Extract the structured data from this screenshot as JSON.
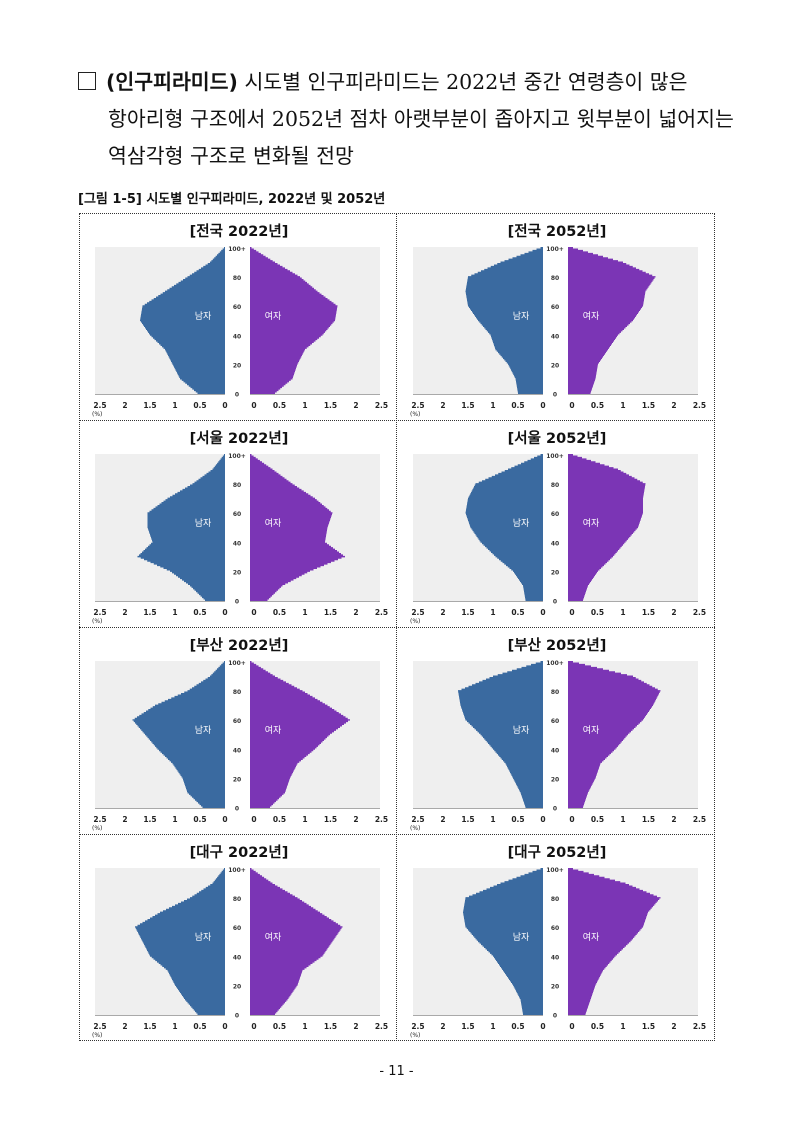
{
  "intro": {
    "bullet": "□",
    "keyword": "(인구피라미드)",
    "line1_rest": "시도별 인구피라미드는 2022년 중간 연령층이 많은",
    "line2": "항아리형 구조에서 2052년 점차 아랫부분이 좁아지고 윗부분이 넓어지는",
    "line3": "역삼각형 구조로 변화될 전망"
  },
  "figure_title": "[그림 1-5] 시도별 인구피라미드, 2022년 및 2052년",
  "page_number": "- 11 -",
  "colors": {
    "male": "#3a6aa0",
    "female": "#7b35b5",
    "plot_bg": "#efefef"
  },
  "chart_data": [
    {
      "type": "pyramid",
      "title": "[전국 2022년]",
      "series": [
        {
          "name": "남자"
        },
        {
          "name": "여자"
        }
      ],
      "y_ticks": [
        "0",
        "20",
        "40",
        "60",
        "80",
        "100+"
      ],
      "x_ticks_left": [
        "2.5",
        "2",
        "1.5",
        "1",
        "0.5",
        "0"
      ],
      "x_ticks_right": [
        "0",
        "0.5",
        "1",
        "1.5",
        "2",
        "2.5"
      ],
      "x_unit": "(%)",
      "ages": [
        0,
        10,
        20,
        30,
        40,
        50,
        60,
        70,
        80,
        90,
        100
      ],
      "male": [
        0.55,
        0.9,
        1.05,
        1.2,
        1.5,
        1.7,
        1.65,
        1.2,
        0.75,
        0.3,
        0.02
      ],
      "female": [
        0.5,
        0.85,
        0.95,
        1.1,
        1.45,
        1.7,
        1.75,
        1.35,
        1.0,
        0.5,
        0.03
      ]
    },
    {
      "type": "pyramid",
      "title": "[전국 2052년]",
      "series": [
        {
          "name": "남자"
        },
        {
          "name": "여자"
        }
      ],
      "y_ticks": [
        "0",
        "20",
        "40",
        "60",
        "80",
        "100+"
      ],
      "x_ticks_left": [
        "2.5",
        "2",
        "1.5",
        "1",
        "0.5",
        "0"
      ],
      "x_ticks_right": [
        "0",
        "0.5",
        "1",
        "1.5",
        "2",
        "2.5"
      ],
      "x_unit": "(%)",
      "ages": [
        0,
        10,
        20,
        30,
        40,
        50,
        60,
        70,
        80,
        90,
        100
      ],
      "male": [
        0.5,
        0.55,
        0.7,
        0.95,
        1.05,
        1.3,
        1.5,
        1.55,
        1.5,
        0.85,
        0.05
      ],
      "female": [
        0.45,
        0.55,
        0.6,
        0.8,
        1.0,
        1.3,
        1.5,
        1.55,
        1.75,
        1.1,
        0.1
      ]
    },
    {
      "type": "pyramid",
      "title": "[서울 2022년]",
      "series": [
        {
          "name": "남자"
        },
        {
          "name": "여자"
        }
      ],
      "y_ticks": [
        "0",
        "20",
        "40",
        "60",
        "80",
        "100+"
      ],
      "x_ticks_left": [
        "2.5",
        "2",
        "1.5",
        "1",
        "0.5",
        "0"
      ],
      "x_ticks_right": [
        "0",
        "0.5",
        "1",
        "1.5",
        "2",
        "2.5"
      ],
      "x_unit": "(%)",
      "ages": [
        0,
        10,
        20,
        30,
        40,
        50,
        60,
        70,
        80,
        90,
        100
      ],
      "male": [
        0.4,
        0.7,
        1.1,
        1.75,
        1.45,
        1.55,
        1.55,
        1.15,
        0.65,
        0.25,
        0.02
      ],
      "female": [
        0.35,
        0.65,
        1.2,
        1.9,
        1.5,
        1.55,
        1.65,
        1.3,
        0.85,
        0.45,
        0.03
      ]
    },
    {
      "type": "pyramid",
      "title": "[서울 2052년]",
      "series": [
        {
          "name": "남자"
        },
        {
          "name": "여자"
        }
      ],
      "y_ticks": [
        "0",
        "20",
        "40",
        "60",
        "80",
        "100+"
      ],
      "x_ticks_left": [
        "2.5",
        "2",
        "1.5",
        "1",
        "0.5",
        "0"
      ],
      "x_ticks_right": [
        "0",
        "0.5",
        "1",
        "1.5",
        "2",
        "2.5"
      ],
      "x_unit": "(%)",
      "ages": [
        0,
        10,
        20,
        30,
        40,
        50,
        60,
        70,
        80,
        90,
        100
      ],
      "male": [
        0.35,
        0.4,
        0.6,
        0.95,
        1.25,
        1.45,
        1.55,
        1.5,
        1.35,
        0.7,
        0.05
      ],
      "female": [
        0.3,
        0.4,
        0.6,
        0.9,
        1.15,
        1.4,
        1.5,
        1.5,
        1.55,
        1.0,
        0.1
      ]
    },
    {
      "type": "pyramid",
      "title": "[부산 2022년]",
      "series": [
        {
          "name": "남자"
        },
        {
          "name": "여자"
        }
      ],
      "y_ticks": [
        "0",
        "20",
        "40",
        "60",
        "80",
        "100+"
      ],
      "x_ticks_left": [
        "2.5",
        "2",
        "1.5",
        "1",
        "0.5",
        "0"
      ],
      "x_ticks_right": [
        "0",
        "0.5",
        "1",
        "1.5",
        "2",
        "2.5"
      ],
      "x_unit": "(%)",
      "ages": [
        0,
        10,
        20,
        30,
        40,
        50,
        60,
        70,
        80,
        90,
        100
      ],
      "male": [
        0.45,
        0.75,
        0.85,
        1.05,
        1.35,
        1.6,
        1.85,
        1.4,
        0.75,
        0.3,
        0.02
      ],
      "female": [
        0.4,
        0.7,
        0.8,
        0.95,
        1.3,
        1.6,
        2.0,
        1.55,
        1.05,
        0.5,
        0.03
      ]
    },
    {
      "type": "pyramid",
      "title": "[부산 2052년]",
      "series": [
        {
          "name": "남자"
        },
        {
          "name": "여자"
        }
      ],
      "y_ticks": [
        "0",
        "20",
        "40",
        "60",
        "80",
        "100+"
      ],
      "x_ticks_left": [
        "2.5",
        "2",
        "1.5",
        "1",
        "0.5",
        "0"
      ],
      "x_ticks_right": [
        "0",
        "0.5",
        "1",
        "1.5",
        "2",
        "2.5"
      ],
      "x_unit": "(%)",
      "ages": [
        0,
        10,
        20,
        30,
        40,
        50,
        60,
        70,
        80,
        90,
        100
      ],
      "male": [
        0.35,
        0.45,
        0.6,
        0.75,
        1.0,
        1.25,
        1.55,
        1.65,
        1.7,
        1.0,
        0.05
      ],
      "female": [
        0.3,
        0.4,
        0.55,
        0.65,
        0.95,
        1.2,
        1.5,
        1.7,
        1.85,
        1.3,
        0.1
      ]
    },
    {
      "type": "pyramid",
      "title": "[대구 2022년]",
      "series": [
        {
          "name": "남자"
        },
        {
          "name": "여자"
        }
      ],
      "y_ticks": [
        "0",
        "20",
        "40",
        "60",
        "80",
        "100+"
      ],
      "x_ticks_left": [
        "2.5",
        "2",
        "1.5",
        "1",
        "0.5",
        "0"
      ],
      "x_ticks_right": [
        "0",
        "0.5",
        "1",
        "1.5",
        "2",
        "2.5"
      ],
      "x_unit": "(%)",
      "ages": [
        0,
        10,
        20,
        30,
        40,
        50,
        60,
        70,
        80,
        90,
        100
      ],
      "male": [
        0.55,
        0.8,
        1.0,
        1.15,
        1.5,
        1.65,
        1.8,
        1.3,
        0.7,
        0.25,
        0.02
      ],
      "female": [
        0.5,
        0.75,
        0.95,
        1.05,
        1.45,
        1.65,
        1.85,
        1.4,
        0.95,
        0.45,
        0.03
      ]
    },
    {
      "type": "pyramid",
      "title": "[대구 2052년]",
      "series": [
        {
          "name": "남자"
        },
        {
          "name": "여자"
        }
      ],
      "y_ticks": [
        "0",
        "20",
        "40",
        "60",
        "80",
        "100+"
      ],
      "x_ticks_left": [
        "2.5",
        "2",
        "1.5",
        "1",
        "0.5",
        "0"
      ],
      "x_ticks_right": [
        "0",
        "0.5",
        "1",
        "1.5",
        "2",
        "2.5"
      ],
      "x_unit": "(%)",
      "ages": [
        0,
        10,
        20,
        30,
        40,
        50,
        60,
        70,
        80,
        90,
        100
      ],
      "male": [
        0.4,
        0.45,
        0.6,
        0.8,
        1.0,
        1.3,
        1.55,
        1.6,
        1.55,
        0.85,
        0.05
      ],
      "female": [
        0.35,
        0.45,
        0.55,
        0.7,
        0.95,
        1.25,
        1.5,
        1.6,
        1.85,
        1.15,
        0.1
      ]
    }
  ]
}
